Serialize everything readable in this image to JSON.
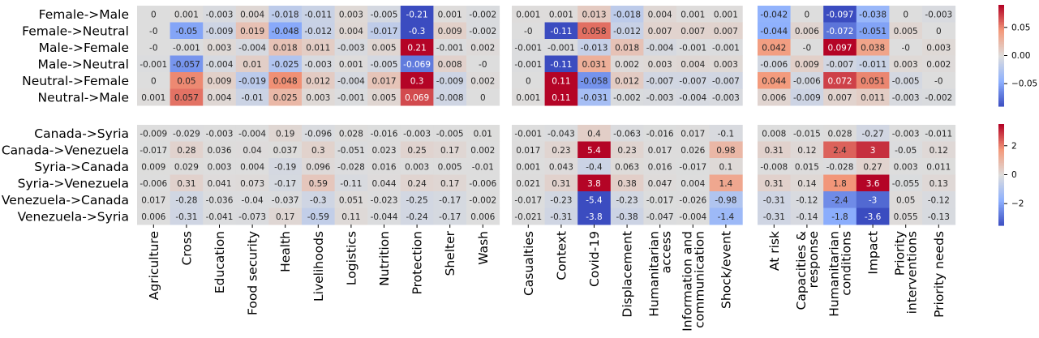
{
  "chart_data": {
    "type": "heatmap",
    "column_groups": [
      [
        "Agriculture",
        "Cross",
        "Education",
        "Food security",
        "Health",
        "Livelihoods",
        "Logistics",
        "Nutrition",
        "Protection",
        "Shelter",
        "Wash"
      ],
      [
        "Casualties",
        "Context",
        "Covid-19",
        "Displacement",
        "Humanitarian\naccess",
        "Information and\ncommunication",
        "Shock/event"
      ],
      [
        "At risk",
        "Capacities &\nresponse",
        "Humanitarian\nconditions",
        "Impact",
        "Priority\ninterventions",
        "Priority needs"
      ]
    ],
    "panels": [
      {
        "rows": [
          "Female->Male",
          "Female->Neutral",
          "Male->Female",
          "Male->Neutral",
          "Neutral->Female",
          "Neutral->Male"
        ],
        "vmin": -0.09,
        "vmax": 0.09,
        "colorbar_ticks": [
          0.05,
          0.0,
          -0.05
        ],
        "colorbar_labels": [
          "0.05",
          "0.00",
          "−0.05"
        ],
        "blocks": [
          [
            [
              "0",
              "0.001",
              "-0.003",
              "0.004",
              "-0.018",
              "-0.011",
              "0.003",
              "-0.005",
              "-0.21",
              "0.001",
              "-0.002"
            ],
            [
              "-0",
              "-0.05",
              "-0.009",
              "0.019",
              "-0.048",
              "-0.012",
              "0.004",
              "-0.017",
              "-0.3",
              "0.009",
              "-0.002"
            ],
            [
              "-0",
              "-0.001",
              "0.003",
              "-0.004",
              "0.018",
              "0.011",
              "-0.003",
              "0.005",
              "0.21",
              "-0.001",
              "0.002"
            ],
            [
              "-0.001",
              "-0.057",
              "-0.004",
              "0.01",
              "-0.025",
              "-0.003",
              "0.001",
              "-0.005",
              "-0.069",
              "0.008",
              "-0"
            ],
            [
              "0",
              "0.05",
              "0.009",
              "-0.019",
              "0.048",
              "0.012",
              "-0.004",
              "0.017",
              "0.3",
              "-0.009",
              "0.002"
            ],
            [
              "0.001",
              "0.057",
              "0.004",
              "-0.01",
              "0.025",
              "0.003",
              "-0.001",
              "0.005",
              "0.069",
              "-0.008",
              "0"
            ]
          ],
          [
            [
              "0.001",
              "0.001",
              "0.013",
              "-0.018",
              "0.004",
              "0.001",
              "0.001"
            ],
            [
              "-0",
              "-0.11",
              "0.058",
              "-0.012",
              "0.007",
              "0.007",
              "0.007"
            ],
            [
              "-0.001",
              "-0.001",
              "-0.013",
              "0.018",
              "-0.004",
              "-0.001",
              "-0.001"
            ],
            [
              "-0.001",
              "-0.11",
              "0.031",
              "0.002",
              "0.003",
              "0.004",
              "0.003"
            ],
            [
              "0",
              "0.11",
              "-0.058",
              "0.012",
              "-0.007",
              "-0.007",
              "-0.007"
            ],
            [
              "0.001",
              "0.11",
              "-0.031",
              "-0.002",
              "-0.003",
              "-0.004",
              "-0.003"
            ]
          ],
          [
            [
              "-0.042",
              "0",
              "-0.097",
              "-0.038",
              "0",
              "-0.003"
            ],
            [
              "-0.044",
              "0.006",
              "-0.072",
              "-0.051",
              "0.005",
              "0"
            ],
            [
              "0.042",
              "-0",
              "0.097",
              "0.038",
              "-0",
              "0.003"
            ],
            [
              "-0.006",
              "0.009",
              "-0.007",
              "-0.011",
              "0.003",
              "0.002"
            ],
            [
              "0.044",
              "-0.006",
              "0.072",
              "0.051",
              "-0.005",
              "-0"
            ],
            [
              "0.006",
              "-0.009",
              "0.007",
              "0.011",
              "-0.003",
              "-0.002"
            ]
          ]
        ]
      },
      {
        "rows": [
          "Canada->Syria",
          "Canada->Venezuela",
          "Syria->Canada",
          "Syria->Venezuela",
          "Venezuela->Canada",
          "Venezuela->Syria"
        ],
        "vmin": -3.5,
        "vmax": 3.5,
        "colorbar_ticks": [
          2,
          0,
          -2
        ],
        "colorbar_labels": [
          "2",
          "0",
          "−2"
        ],
        "blocks": [
          [
            [
              "-0.009",
              "-0.029",
              "-0.003",
              "-0.004",
              "0.19",
              "-0.096",
              "0.028",
              "-0.016",
              "-0.003",
              "-0.005",
              "0.01"
            ],
            [
              "-0.017",
              "0.28",
              "0.036",
              "0.04",
              "0.037",
              "0.3",
              "-0.051",
              "0.023",
              "0.25",
              "0.17",
              "0.002"
            ],
            [
              "0.009",
              "0.029",
              "0.003",
              "0.004",
              "-0.19",
              "0.096",
              "-0.028",
              "0.016",
              "0.003",
              "0.005",
              "-0.01"
            ],
            [
              "-0.006",
              "0.31",
              "0.041",
              "0.073",
              "-0.17",
              "0.59",
              "-0.11",
              "0.044",
              "0.24",
              "0.17",
              "-0.006"
            ],
            [
              "0.017",
              "-0.28",
              "-0.036",
              "-0.04",
              "-0.037",
              "-0.3",
              "0.051",
              "-0.023",
              "-0.25",
              "-0.17",
              "-0.002"
            ],
            [
              "0.006",
              "-0.31",
              "-0.041",
              "-0.073",
              "0.17",
              "-0.59",
              "0.11",
              "-0.044",
              "-0.24",
              "-0.17",
              "0.006"
            ]
          ],
          [
            [
              "-0.001",
              "-0.043",
              "0.4",
              "-0.063",
              "-0.016",
              "0.017",
              "-0.1"
            ],
            [
              "0.017",
              "0.23",
              "5.4",
              "0.23",
              "0.017",
              "0.026",
              "0.98"
            ],
            [
              "0.001",
              "0.043",
              "-0.4",
              "0.063",
              "0.016",
              "-0.017",
              "0.1"
            ],
            [
              "0.021",
              "0.31",
              "3.8",
              "0.38",
              "0.047",
              "0.004",
              "1.4"
            ],
            [
              "-0.017",
              "-0.23",
              "-5.4",
              "-0.23",
              "-0.017",
              "-0.026",
              "-0.98"
            ],
            [
              "-0.021",
              "-0.31",
              "-3.8",
              "-0.38",
              "-0.047",
              "-0.004",
              "-1.4"
            ]
          ],
          [
            [
              "0.008",
              "-0.015",
              "0.028",
              "-0.27",
              "-0.003",
              "-0.011"
            ],
            [
              "0.31",
              "0.12",
              "2.4",
              "3",
              "-0.05",
              "0.12"
            ],
            [
              "-0.008",
              "0.015",
              "-0.028",
              "0.27",
              "0.003",
              "0.011"
            ],
            [
              "0.31",
              "0.14",
              "1.8",
              "3.6",
              "-0.055",
              "0.13"
            ],
            [
              "-0.31",
              "-0.12",
              "-2.4",
              "-3",
              "0.05",
              "-0.12"
            ],
            [
              "-0.31",
              "-0.14",
              "-1.8",
              "-3.6",
              "0.055",
              "-0.13"
            ]
          ]
        ]
      }
    ]
  }
}
